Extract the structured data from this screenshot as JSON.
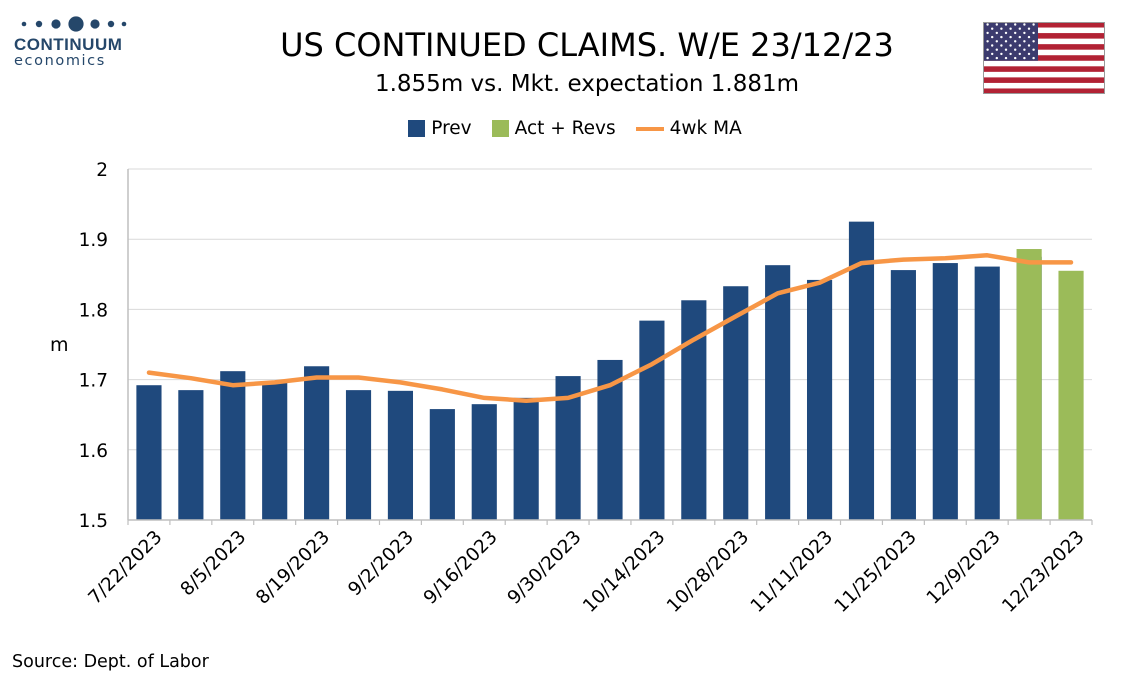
{
  "logo": {
    "name": "CONTINUUM",
    "sub": "economics",
    "color": "#25476a"
  },
  "chart_data": {
    "type": "bar",
    "title": "US CONTINUED CLAIMS. W/E 23/12/23",
    "subtitle": "1.855m vs. Mkt. expectation 1.881m",
    "ylabel": "m",
    "ylim": [
      1.5,
      2.0
    ],
    "yticks": [
      "1.5",
      "1.6",
      "1.7",
      "1.8",
      "1.9",
      "2"
    ],
    "grid": true,
    "legend_position": "top",
    "x": [
      "7/22/2023",
      "7/29/2023",
      "8/5/2023",
      "8/12/2023",
      "8/19/2023",
      "8/26/2023",
      "9/2/2023",
      "9/9/2023",
      "9/16/2023",
      "9/23/2023",
      "9/30/2023",
      "10/7/2023",
      "10/14/2023",
      "10/21/2023",
      "10/28/2023",
      "11/4/2023",
      "11/11/2023",
      "11/18/2023",
      "11/25/2023",
      "12/2/2023",
      "12/9/2023",
      "12/16/2023",
      "12/23/2023"
    ],
    "x_tick_labels": [
      "7/22/2023",
      "8/5/2023",
      "8/19/2023",
      "9/2/2023",
      "9/16/2023",
      "9/30/2023",
      "10/14/2023",
      "10/28/2023",
      "11/11/2023",
      "11/25/2023",
      "12/9/2023",
      "12/23/2023"
    ],
    "series": [
      {
        "name": "Prev",
        "type": "bar",
        "color": "#1f497d",
        "values": [
          1.692,
          1.685,
          1.712,
          1.696,
          1.719,
          1.685,
          1.684,
          1.658,
          1.665,
          1.674,
          1.705,
          1.728,
          1.784,
          1.813,
          1.833,
          1.863,
          1.842,
          1.925,
          1.856,
          1.866,
          1.861,
          1.875,
          null
        ]
      },
      {
        "name": "Act + Revs",
        "type": "bar",
        "color": "#9bbb59",
        "values": [
          null,
          null,
          null,
          null,
          null,
          null,
          null,
          null,
          null,
          null,
          null,
          null,
          null,
          null,
          null,
          null,
          null,
          null,
          null,
          null,
          null,
          1.886,
          1.855
        ]
      },
      {
        "name": "4wk MA",
        "type": "line",
        "color": "#f79646",
        "values": [
          1.71,
          1.702,
          1.692,
          1.696,
          1.703,
          1.703,
          1.696,
          1.686,
          1.674,
          1.67,
          1.674,
          1.692,
          1.722,
          1.757,
          1.79,
          1.823,
          1.838,
          1.866,
          1.871,
          1.873,
          1.877,
          1.867,
          1.867
        ]
      }
    ]
  },
  "source": "Source: Dept. of Labor"
}
